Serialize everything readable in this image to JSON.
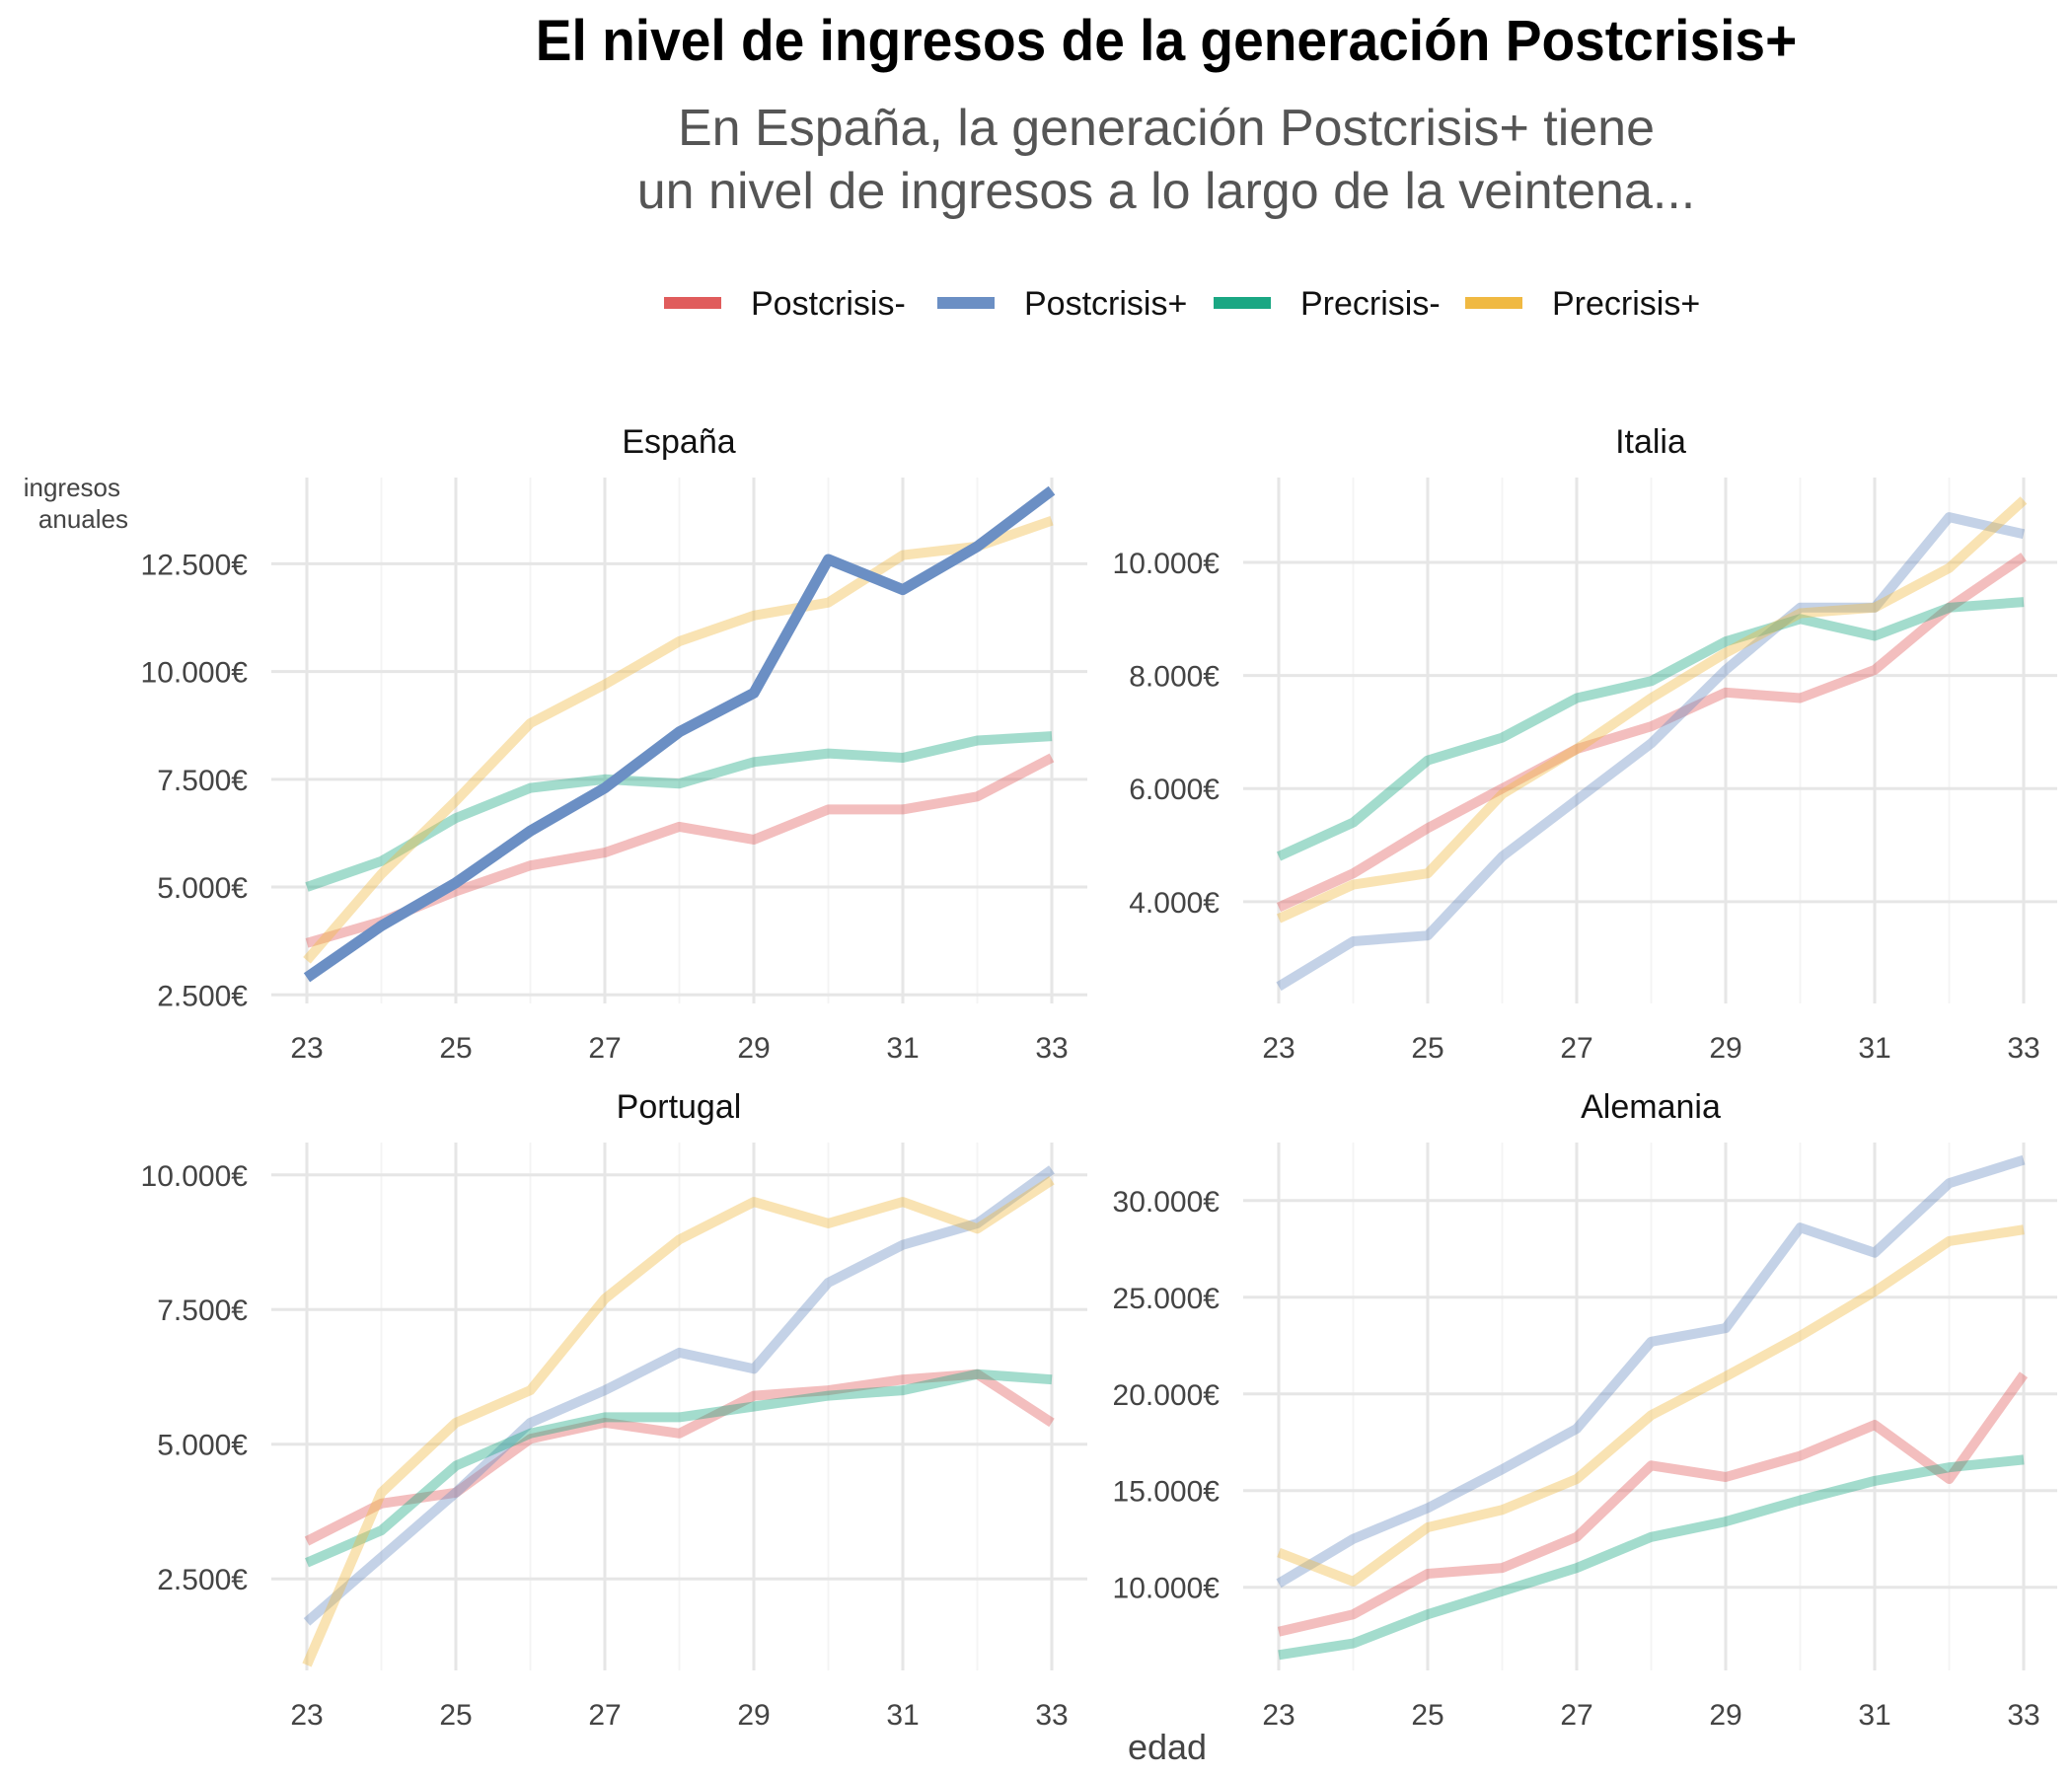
{
  "title": "El nivel de ingresos de la generación Postcrisis+",
  "subtitle_lines": [
    "En España, la generación Postcrisis+ tiene",
    "un nivel de ingresos a lo largo de la veintena..."
  ],
  "colors": {
    "Postcrisis-": "#e05c5c",
    "Postcrisis+": "#6b8fc4",
    "Precrisis-": "#1aa783",
    "Precrisis+": "#f0b942"
  },
  "chart_data": {
    "type": "line",
    "xlabel": "edad",
    "ylabel": "ingresos anuales",
    "legend": {
      "placement": "top",
      "entries": [
        "Postcrisis-",
        "Postcrisis+",
        "Precrisis-",
        "Precrisis+"
      ]
    },
    "grid": true,
    "x_ticks": [
      23,
      25,
      27,
      29,
      31,
      33
    ],
    "x": [
      23,
      24,
      25,
      26,
      27,
      28,
      29,
      30,
      31,
      32,
      33
    ],
    "panels": [
      {
        "name": "España",
        "highlight": "Postcrisis+",
        "ylim": [
          2300,
          14500
        ],
        "y_ticks": [
          2500,
          5000,
          7500,
          10000,
          12500
        ],
        "y_tick_labels": [
          "2.500€",
          "5.000€",
          "7.500€",
          "10.000€",
          "12.500€"
        ],
        "series": [
          {
            "name": "Postcrisis-",
            "values": [
              3700,
              4200,
              4900,
              5500,
              5800,
              6400,
              6100,
              6800,
              6800,
              7100,
              8000
            ]
          },
          {
            "name": "Postcrisis+",
            "values": [
              2900,
              4100,
              5100,
              6300,
              7300,
              8600,
              9500,
              12600,
              11900,
              12900,
              14200
            ]
          },
          {
            "name": "Precrisis-",
            "values": [
              5000,
              5600,
              6600,
              7300,
              7500,
              7400,
              7900,
              8100,
              8000,
              8400,
              8500
            ]
          },
          {
            "name": "Precrisis+",
            "values": [
              3300,
              5300,
              7000,
              8800,
              9700,
              10700,
              11300,
              11600,
              12700,
              12900,
              13500
            ]
          }
        ]
      },
      {
        "name": "Italia",
        "highlight": null,
        "ylim": [
          2200,
          11500
        ],
        "y_ticks": [
          4000,
          6000,
          8000,
          10000
        ],
        "y_tick_labels": [
          "4.000€",
          "6.000€",
          "8.000€",
          "10.000€"
        ],
        "series": [
          {
            "name": "Postcrisis-",
            "values": [
              3900,
              4500,
              5300,
              6000,
              6700,
              7100,
              7700,
              7600,
              8100,
              9200,
              10100
            ]
          },
          {
            "name": "Postcrisis+",
            "values": [
              2500,
              3300,
              3400,
              4800,
              5800,
              6800,
              8100,
              9200,
              9200,
              10800,
              10500
            ]
          },
          {
            "name": "Precrisis-",
            "values": [
              4800,
              5400,
              6500,
              6900,
              7600,
              7900,
              8600,
              9000,
              8700,
              9200,
              9300
            ]
          },
          {
            "name": "Precrisis+",
            "values": [
              3700,
              4300,
              4500,
              5900,
              6700,
              7600,
              8400,
              9100,
              9200,
              9900,
              11100
            ]
          }
        ]
      },
      {
        "name": "Portugal",
        "highlight": null,
        "ylim": [
          800,
          10600
        ],
        "y_ticks": [
          2500,
          5000,
          7500,
          10000
        ],
        "y_tick_labels": [
          "2.500€",
          "5.000€",
          "7.500€",
          "10.000€"
        ],
        "series": [
          {
            "name": "Postcrisis-",
            "values": [
              3200,
              3900,
              4100,
              5100,
              5400,
              5200,
              5900,
              6000,
              6200,
              6300,
              5400
            ]
          },
          {
            "name": "Postcrisis+",
            "values": [
              1700,
              2900,
              4100,
              5400,
              6000,
              6700,
              6400,
              8000,
              8700,
              9100,
              10100
            ]
          },
          {
            "name": "Precrisis-",
            "values": [
              2800,
              3400,
              4600,
              5200,
              5500,
              5500,
              5700,
              5900,
              6000,
              6300,
              6200
            ]
          },
          {
            "name": "Precrisis+",
            "values": [
              900,
              4100,
              5400,
              6000,
              7700,
              8800,
              9500,
              9100,
              9500,
              9000,
              9900
            ]
          }
        ]
      },
      {
        "name": "Alemania",
        "highlight": null,
        "ylim": [
          5700,
          33000
        ],
        "y_ticks": [
          10000,
          15000,
          20000,
          25000,
          30000
        ],
        "y_tick_labels": [
          "10.000€",
          "15.000€",
          "20.000€",
          "25.000€",
          "30.000€"
        ],
        "series": [
          {
            "name": "Postcrisis-",
            "values": [
              7700,
              8600,
              10700,
              11000,
              12600,
              16300,
              15700,
              16800,
              18400,
              15600,
              21000
            ]
          },
          {
            "name": "Postcrisis+",
            "values": [
              10200,
              12500,
              14100,
              16100,
              18200,
              22700,
              23400,
              28600,
              27300,
              30900,
              32100
            ]
          },
          {
            "name": "Precrisis-",
            "values": [
              6500,
              7100,
              8600,
              9800,
              11000,
              12600,
              13400,
              14500,
              15500,
              16200,
              16600
            ]
          },
          {
            "name": "Precrisis+",
            "values": [
              11800,
              10300,
              13100,
              14000,
              15600,
              18900,
              20900,
              23000,
              25300,
              27900,
              28500
            ]
          }
        ]
      }
    ]
  }
}
